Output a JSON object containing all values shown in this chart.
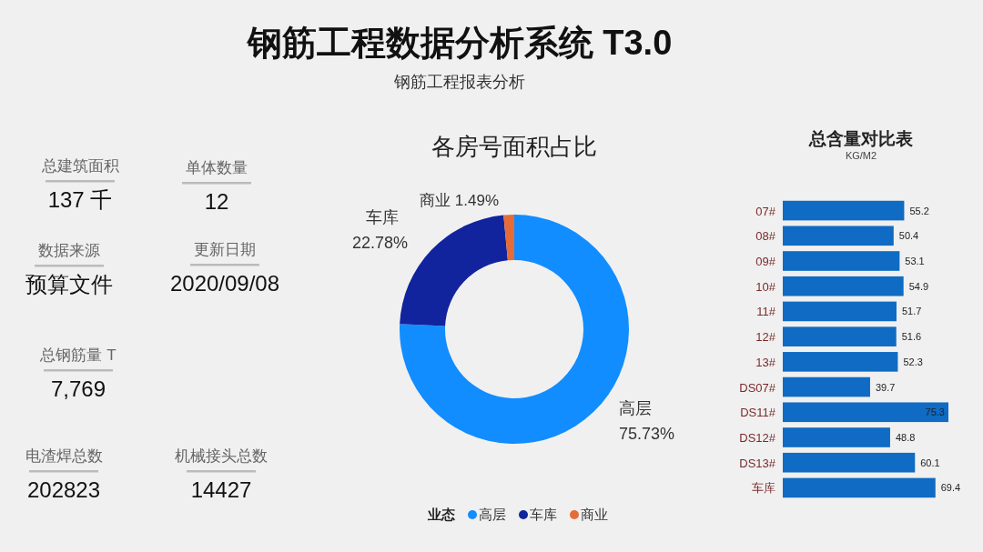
{
  "chart_data": [
    {
      "type": "other",
      "title": "钢筋工程数据分析系统 T3.0",
      "subtitle": "钢筋工程报表分析",
      "annotations": [
        "总建筑面积",
        "137 千",
        "单体数量",
        "12",
        "数据来源",
        "预算文件",
        "更新日期",
        "2020/09/08",
        "总钢筋量 T",
        "7,769",
        "电渣焊总数",
        "202823",
        "机械接头总数",
        "14427"
      ]
    },
    {
      "type": "donut",
      "title": "各房号面积占比",
      "categories": [
        "高层",
        "车库",
        "商业"
      ],
      "values": [
        75.73,
        22.78,
        1.49
      ],
      "colors": [
        "#118dff",
        "#12239e",
        "#e66c37"
      ],
      "value_labels": [
        "75.73%",
        "22.78%",
        "1.49%"
      ],
      "legend_title": "业态",
      "legend": "bottom"
    },
    {
      "type": "bar",
      "orientation": "horizontal",
      "title": "总含量对比表",
      "subtitle": "KG/M2",
      "categories": [
        "07#",
        "08#",
        "09#",
        "10#",
        "11#",
        "12#",
        "13#",
        "DS07#",
        "DS11#",
        "DS12#",
        "DS13#",
        "车库"
      ],
      "values": [
        55.2,
        50.4,
        53.1,
        54.9,
        51.7,
        51.6,
        52.3,
        39.7,
        75.3,
        48.8,
        60.1,
        69.4
      ],
      "color": "#0f6bc3",
      "data_labels": true
    }
  ]
}
